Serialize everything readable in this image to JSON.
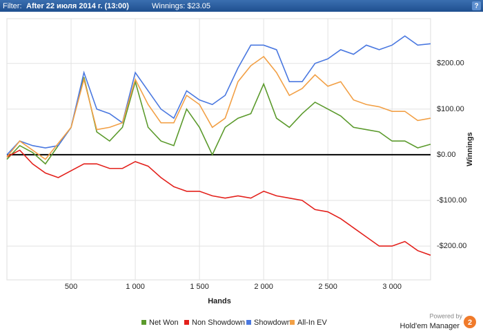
{
  "header": {
    "filter_label": "Filter:",
    "filter": "After 22 июля 2014 г. (13:00)",
    "winnings": "Winnings: $23.05",
    "help": "?"
  },
  "branding": {
    "powered_by": "Powered by",
    "product": "Hold'em Manager",
    "logo": "2"
  },
  "chart_data": {
    "type": "line",
    "x_label": "Hands",
    "y_label": "Winnings",
    "x": [
      0,
      100,
      200,
      300,
      400,
      500,
      600,
      700,
      800,
      900,
      1000,
      1100,
      1200,
      1300,
      1400,
      1500,
      1600,
      1700,
      1800,
      1900,
      2000,
      2100,
      2200,
      2300,
      2400,
      2500,
      2600,
      2700,
      2800,
      2900,
      3000,
      3100,
      3200,
      3300
    ],
    "series": [
      {
        "name": "Net Won",
        "color": "#5b9a2c",
        "values": [
          -10,
          20,
          5,
          -20,
          20,
          60,
          170,
          50,
          30,
          60,
          160,
          60,
          30,
          20,
          100,
          60,
          0,
          60,
          80,
          90,
          155,
          80,
          60,
          90,
          115,
          100,
          85,
          60,
          55,
          50,
          30,
          30,
          15,
          23
        ]
      },
      {
        "name": "Non Showdown",
        "color": "#e3201b",
        "values": [
          -5,
          10,
          -20,
          -40,
          -50,
          -35,
          -20,
          -20,
          -30,
          -30,
          -15,
          -25,
          -50,
          -70,
          -80,
          -80,
          -90,
          -95,
          -90,
          -95,
          -80,
          -90,
          -95,
          -100,
          -120,
          -125,
          -140,
          -160,
          -180,
          -200,
          -200,
          -190,
          -210,
          -220
        ]
      },
      {
        "name": "Showdown",
        "color": "#4a78e0",
        "values": [
          0,
          30,
          20,
          15,
          20,
          60,
          180,
          100,
          90,
          70,
          180,
          140,
          100,
          80,
          140,
          120,
          110,
          130,
          190,
          240,
          240,
          230,
          160,
          160,
          200,
          210,
          230,
          220,
          240,
          230,
          240,
          260,
          240,
          243
        ]
      },
      {
        "name": "All-In EV",
        "color": "#f2a046",
        "values": [
          -5,
          30,
          10,
          -10,
          25,
          60,
          165,
          55,
          60,
          70,
          165,
          110,
          70,
          70,
          130,
          110,
          60,
          80,
          160,
          195,
          215,
          180,
          130,
          145,
          175,
          150,
          160,
          120,
          110,
          105,
          95,
          95,
          75,
          80
        ]
      }
    ],
    "xlim": [
      0,
      3300
    ],
    "ylim": [
      -274,
      298
    ],
    "xticks": [
      500,
      {
        "value": 1000,
        "label": "1 000"
      },
      {
        "value": 1500,
        "label": "1 500"
      },
      {
        "value": 2000,
        "label": "2 000"
      },
      {
        "value": 2500,
        "label": "2 500"
      },
      {
        "value": 3000,
        "label": "3 000"
      }
    ],
    "yticks": [
      {
        "value": -200,
        "label": "-$200.00"
      },
      {
        "value": -100,
        "label": "-$100.00"
      },
      {
        "value": 0,
        "label": "$0.00"
      },
      {
        "value": 100,
        "label": "$100.00"
      },
      {
        "value": 200,
        "label": "$200.00"
      }
    ],
    "grid": true,
    "legend": "bottom"
  }
}
